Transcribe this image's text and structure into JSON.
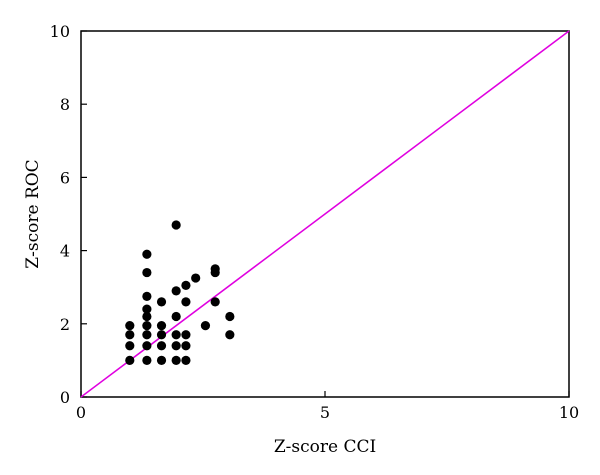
{
  "chart_data": {
    "type": "scatter",
    "title": "",
    "xlabel": "Z-score CCI",
    "ylabel": "Z-score ROC",
    "xlim": [
      0,
      10
    ],
    "ylim": [
      0,
      10
    ],
    "x_ticks": [
      0,
      5,
      10
    ],
    "y_ticks": [
      0,
      2,
      4,
      6,
      8,
      10
    ],
    "grid": false,
    "legend": "none",
    "marker_color": "#000000",
    "reference_line": {
      "from": [
        0,
        0
      ],
      "to": [
        10,
        10
      ],
      "color": "#e000e0"
    },
    "points": [
      {
        "x": 1.0,
        "y": 1.0
      },
      {
        "x": 1.0,
        "y": 1.4
      },
      {
        "x": 1.0,
        "y": 1.7
      },
      {
        "x": 1.0,
        "y": 1.95
      },
      {
        "x": 1.35,
        "y": 1.0
      },
      {
        "x": 1.35,
        "y": 1.4
      },
      {
        "x": 1.35,
        "y": 1.7
      },
      {
        "x": 1.35,
        "y": 1.95
      },
      {
        "x": 1.35,
        "y": 2.2
      },
      {
        "x": 1.35,
        "y": 2.4
      },
      {
        "x": 1.35,
        "y": 2.75
      },
      {
        "x": 1.35,
        "y": 3.4
      },
      {
        "x": 1.35,
        "y": 3.9
      },
      {
        "x": 1.65,
        "y": 1.0
      },
      {
        "x": 1.65,
        "y": 1.4
      },
      {
        "x": 1.65,
        "y": 1.7
      },
      {
        "x": 1.65,
        "y": 1.95
      },
      {
        "x": 1.65,
        "y": 2.6
      },
      {
        "x": 1.95,
        "y": 1.0
      },
      {
        "x": 1.95,
        "y": 1.4
      },
      {
        "x": 1.95,
        "y": 1.7
      },
      {
        "x": 1.95,
        "y": 2.2
      },
      {
        "x": 1.95,
        "y": 2.9
      },
      {
        "x": 1.95,
        "y": 4.7
      },
      {
        "x": 2.15,
        "y": 1.0
      },
      {
        "x": 2.15,
        "y": 1.4
      },
      {
        "x": 2.15,
        "y": 1.7
      },
      {
        "x": 2.15,
        "y": 2.6
      },
      {
        "x": 2.15,
        "y": 3.05
      },
      {
        "x": 2.35,
        "y": 3.25
      },
      {
        "x": 2.55,
        "y": 1.95
      },
      {
        "x": 2.75,
        "y": 2.6
      },
      {
        "x": 2.75,
        "y": 3.4
      },
      {
        "x": 2.75,
        "y": 3.5
      },
      {
        "x": 3.05,
        "y": 1.7
      },
      {
        "x": 3.05,
        "y": 2.2
      }
    ]
  }
}
